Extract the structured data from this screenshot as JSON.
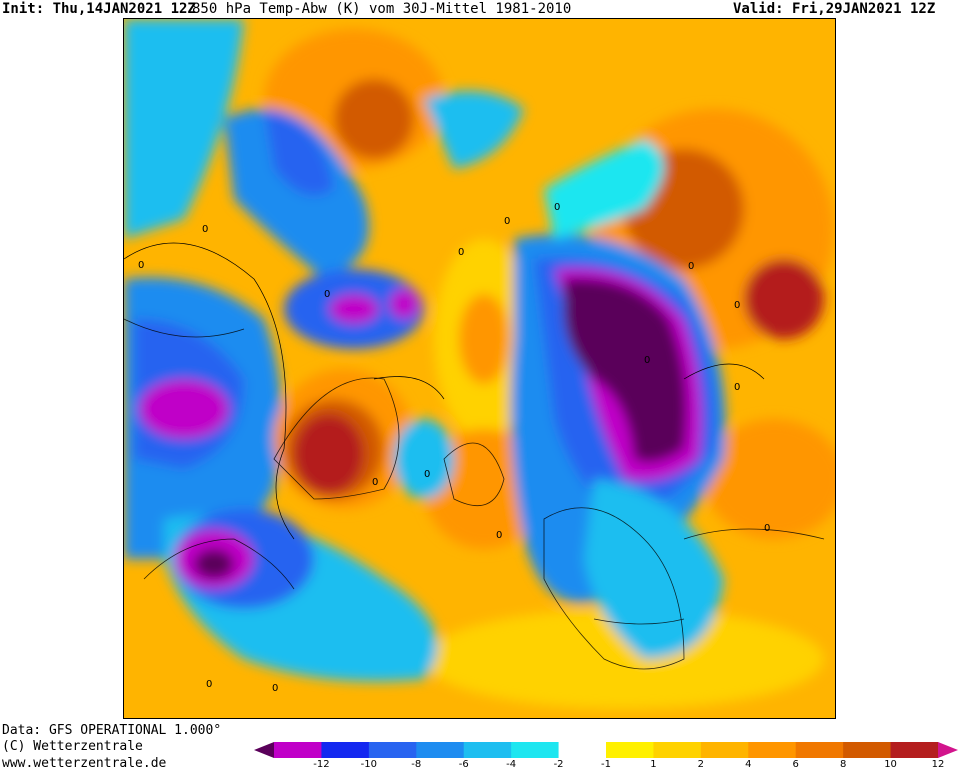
{
  "header": {
    "init": "Init: Thu,14JAN2021 12Z",
    "title": "850 hPa Temp-Abw (K) vom 30J-Mittel 1981-2010",
    "valid": "Valid: Fri,29JAN2021 12Z"
  },
  "footer": {
    "data": "Data: GFS OPERATIONAL 1.000°",
    "copyright": "(C) Wetterzentrale",
    "url": "www.wetterzentrale.de"
  },
  "colorbar": {
    "colors": [
      "#5a005a",
      "#c000c8",
      "#1428f0",
      "#2864f0",
      "#1e8cf0",
      "#1ebef0",
      "#1ee6f0",
      "#ffffff",
      "#fff000",
      "#ffd200",
      "#ffb400",
      "#ff9600",
      "#f07800",
      "#d25a00",
      "#b41e1e",
      "#d2148c"
    ],
    "ticks": [
      "-12",
      "-10",
      "-8",
      "-6",
      "-4",
      "-2",
      "-1",
      "1",
      "2",
      "4",
      "6",
      "8",
      "10",
      "12"
    ]
  },
  "map": {
    "contour_labels": [
      "0",
      "0",
      "0",
      "0",
      "0",
      "0",
      "0",
      "0",
      "0",
      "0",
      "0",
      "0",
      "0",
      "0",
      "0",
      "0"
    ]
  }
}
